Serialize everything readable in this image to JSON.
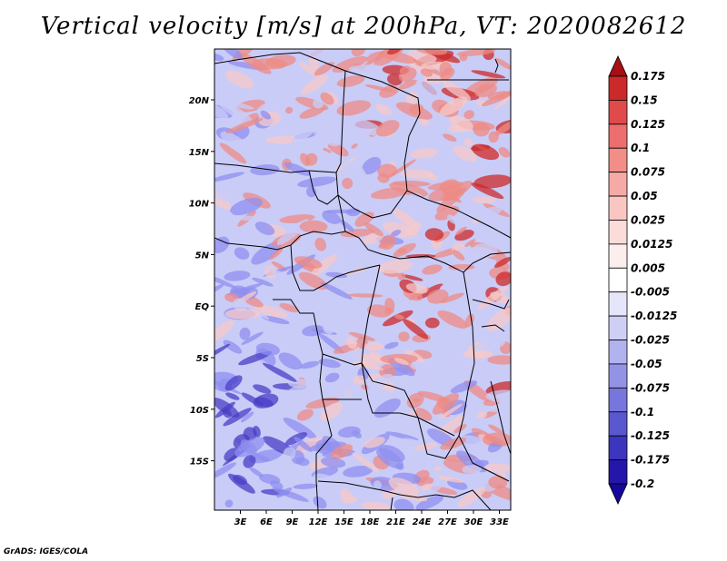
{
  "title": "Vertical velocity [m/s] at 200hPa, VT: 2020082612",
  "credit": "GrADS: IGES/COLA",
  "map": {
    "lat_labels": [
      "20N",
      "15N",
      "10N",
      "5N",
      "EQ",
      "5S",
      "10S",
      "15S"
    ],
    "lon_labels": [
      "3E",
      "6E",
      "9E",
      "12E",
      "15E",
      "18E",
      "21E",
      "24E",
      "27E",
      "30E",
      "33E"
    ],
    "field_colors": {
      "strong_negative": "#4a3fc7",
      "negative": "#8f8ff0",
      "light_negative": "#c9ccf7",
      "light_positive": "#f6c9c9",
      "positive": "#ee8b84",
      "strong_positive": "#cc2a2a",
      "border": "#000000"
    }
  },
  "colorbar": {
    "labels": [
      "0.175",
      "0.15",
      "0.125",
      "0.1",
      "0.075",
      "0.05",
      "0.025",
      "0.0125",
      "0.005",
      "-0.005",
      "-0.0125",
      "-0.025",
      "-0.05",
      "-0.075",
      "-0.1",
      "-0.125",
      "-0.175",
      "-0.2"
    ],
    "colors": [
      "#a50f15",
      "#cb2a2a",
      "#e04a4a",
      "#ec6e6e",
      "#f28d88",
      "#f6aaa5",
      "#f9c6c2",
      "#fbdcd9",
      "#fdeeee",
      "#ffffff",
      "#e6e6fb",
      "#cfcff6",
      "#b2b2ef",
      "#9393e6",
      "#7676dc",
      "#5a58cf",
      "#3c35bd",
      "#2416a8",
      "#14089a"
    ]
  }
}
